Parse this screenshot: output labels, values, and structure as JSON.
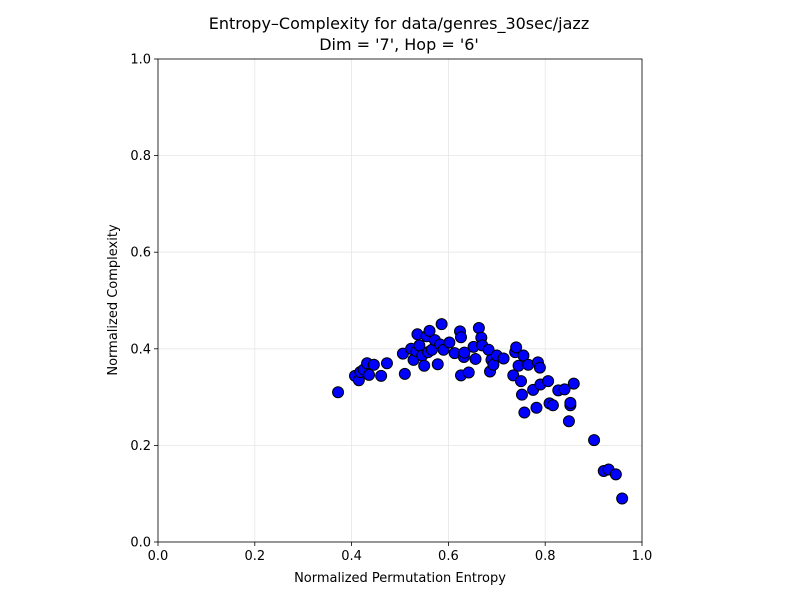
{
  "chart_data": {
    "type": "scatter",
    "title_line1": "Entropy–Complexity for data/genres_30sec/jazz",
    "title_line2": "Dim = '7', Hop = '6'",
    "xlabel": "Normalized Permutation Entropy",
    "ylabel": "Normalized Complexity",
    "xlim": [
      0,
      1
    ],
    "ylim": [
      0,
      1
    ],
    "grid": true,
    "x_ticks": [
      "0.0",
      "0.2",
      "0.4",
      "0.6",
      "0.8",
      "1.0"
    ],
    "y_ticks": [
      "0.0",
      "0.2",
      "0.4",
      "0.6",
      "0.8",
      "1.0"
    ],
    "colors": {
      "marker_fill": "#0000ff",
      "marker_edge": "#000000",
      "grid": "#e6e6e6"
    },
    "series": [
      {
        "points": [
          [
            0.372,
            0.31
          ],
          [
            0.407,
            0.344
          ],
          [
            0.415,
            0.335
          ],
          [
            0.418,
            0.352
          ],
          [
            0.425,
            0.357
          ],
          [
            0.432,
            0.37
          ],
          [
            0.436,
            0.346
          ],
          [
            0.446,
            0.367
          ],
          [
            0.461,
            0.344
          ],
          [
            0.473,
            0.37
          ],
          [
            0.506,
            0.39
          ],
          [
            0.51,
            0.348
          ],
          [
            0.523,
            0.4
          ],
          [
            0.528,
            0.377
          ],
          [
            0.534,
            0.395
          ],
          [
            0.536,
            0.43
          ],
          [
            0.54,
            0.407
          ],
          [
            0.546,
            0.386
          ],
          [
            0.55,
            0.365
          ],
          [
            0.555,
            0.426
          ],
          [
            0.558,
            0.393
          ],
          [
            0.561,
            0.437
          ],
          [
            0.566,
            0.398
          ],
          [
            0.572,
            0.418
          ],
          [
            0.578,
            0.368
          ],
          [
            0.583,
            0.409
          ],
          [
            0.586,
            0.451
          ],
          [
            0.59,
            0.398
          ],
          [
            0.602,
            0.413
          ],
          [
            0.613,
            0.391
          ],
          [
            0.624,
            0.436
          ],
          [
            0.626,
            0.424
          ],
          [
            0.626,
            0.345
          ],
          [
            0.632,
            0.383
          ],
          [
            0.633,
            0.392
          ],
          [
            0.642,
            0.351
          ],
          [
            0.652,
            0.404
          ],
          [
            0.656,
            0.379
          ],
          [
            0.663,
            0.443
          ],
          [
            0.668,
            0.423
          ],
          [
            0.67,
            0.407
          ],
          [
            0.683,
            0.398
          ],
          [
            0.686,
            0.353
          ],
          [
            0.689,
            0.377
          ],
          [
            0.693,
            0.367
          ],
          [
            0.7,
            0.386
          ],
          [
            0.714,
            0.38
          ],
          [
            0.734,
            0.345
          ],
          [
            0.738,
            0.393
          ],
          [
            0.74,
            0.403
          ],
          [
            0.745,
            0.365
          ],
          [
            0.75,
            0.333
          ],
          [
            0.752,
            0.305
          ],
          [
            0.755,
            0.386
          ],
          [
            0.757,
            0.268
          ],
          [
            0.765,
            0.367
          ],
          [
            0.775,
            0.315
          ],
          [
            0.782,
            0.278
          ],
          [
            0.785,
            0.372
          ],
          [
            0.789,
            0.361
          ],
          [
            0.79,
            0.326
          ],
          [
            0.806,
            0.333
          ],
          [
            0.809,
            0.287
          ],
          [
            0.816,
            0.283
          ],
          [
            0.827,
            0.314
          ],
          [
            0.84,
            0.316
          ],
          [
            0.849,
            0.25
          ],
          [
            0.852,
            0.283
          ],
          [
            0.852,
            0.288
          ],
          [
            0.859,
            0.328
          ],
          [
            0.901,
            0.211
          ],
          [
            0.921,
            0.147
          ],
          [
            0.931,
            0.15
          ],
          [
            0.946,
            0.14
          ],
          [
            0.959,
            0.09
          ]
        ]
      }
    ]
  }
}
